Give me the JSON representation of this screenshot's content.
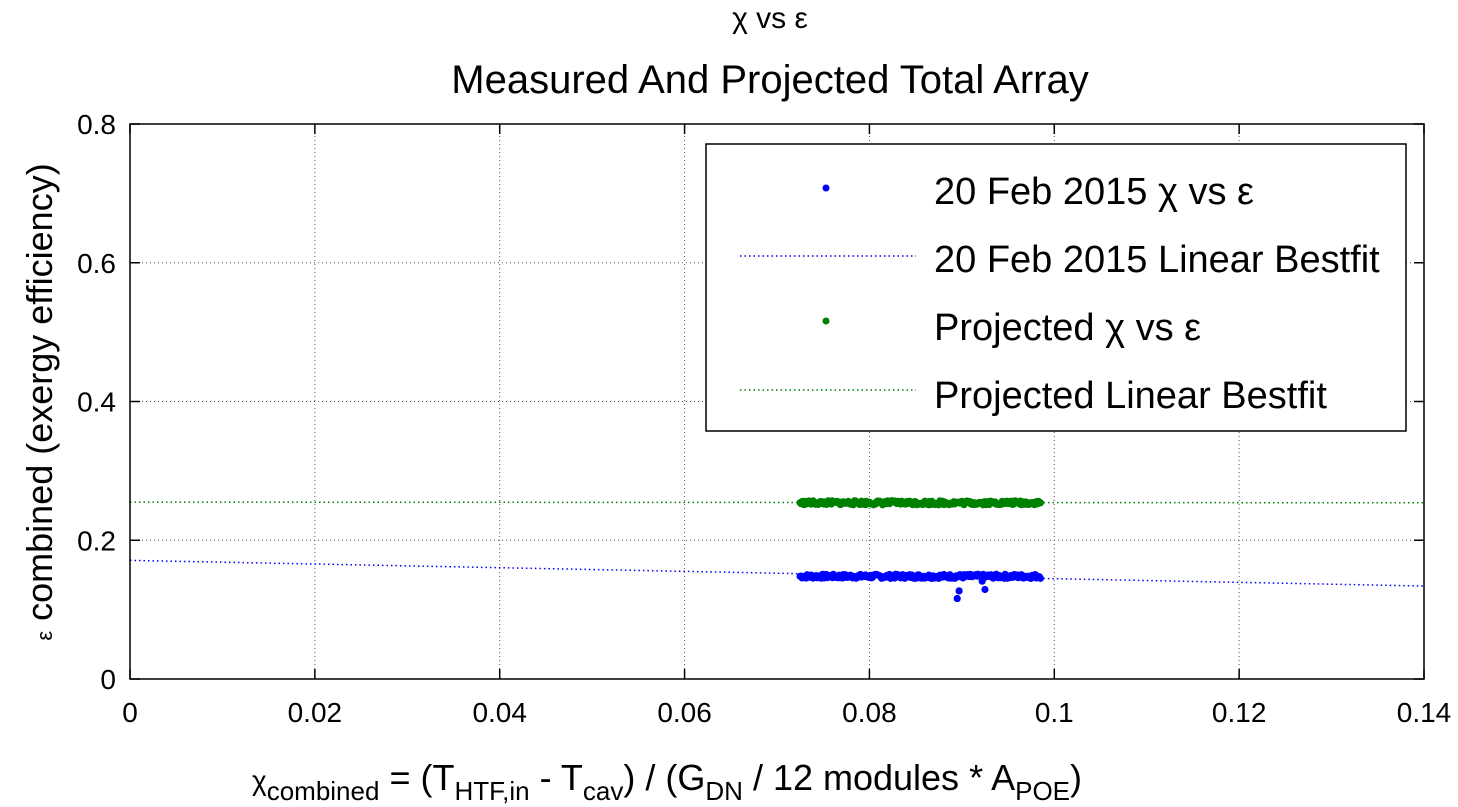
{
  "chart_data": {
    "type": "scatter",
    "title": [
      "χ vs ε",
      "Measured And Projected Total Array"
    ],
    "xlabel": "χcombined = (THTF,in - Tcav) / (GDN / 12 modules * APOE)",
    "ylabel": "ε combined (exergy efficiency)",
    "xlim": [
      0,
      0.14
    ],
    "ylim": [
      0,
      0.8
    ],
    "xticks": [
      0,
      0.02,
      0.04,
      0.06,
      0.08,
      0.1,
      0.12,
      0.14
    ],
    "xtick_labels": [
      "0",
      "0.02",
      "0.04",
      "0.06",
      "0.08",
      "0.1",
      "0.12",
      "0.14"
    ],
    "yticks": [
      0,
      0.2,
      0.4,
      0.6,
      0.8
    ],
    "ytick_labels": [
      "0",
      "0.2",
      "0.4",
      "0.6",
      "0.8"
    ],
    "grid": true,
    "legend_position": "top-right",
    "series": [
      {
        "name": "20 Feb 2015 χ vs ε",
        "kind": "scatter",
        "color": "#0000ff",
        "x_range": [
          0.0725,
          0.0985
        ],
        "y_typical": 0.148,
        "outliers": [
          [
            0.0895,
            0.116
          ],
          [
            0.0897,
            0.127
          ],
          [
            0.0925,
            0.129
          ],
          [
            0.0922,
            0.141
          ]
        ]
      },
      {
        "name": "20 Feb 2015 Linear Bestfit",
        "kind": "line",
        "color": "#0000ff",
        "style": "dotted",
        "x": [
          0,
          0.14
        ],
        "y": [
          0.171,
          0.134
        ]
      },
      {
        "name": "Projected χ vs ε",
        "kind": "scatter",
        "color": "#008000",
        "x_range": [
          0.0725,
          0.0985
        ],
        "y_typical": 0.254
      },
      {
        "name": "Projected Linear Bestfit",
        "kind": "line",
        "color": "#008000",
        "style": "dotted",
        "x": [
          0,
          0.14
        ],
        "y": [
          0.255,
          0.254
        ]
      }
    ]
  }
}
